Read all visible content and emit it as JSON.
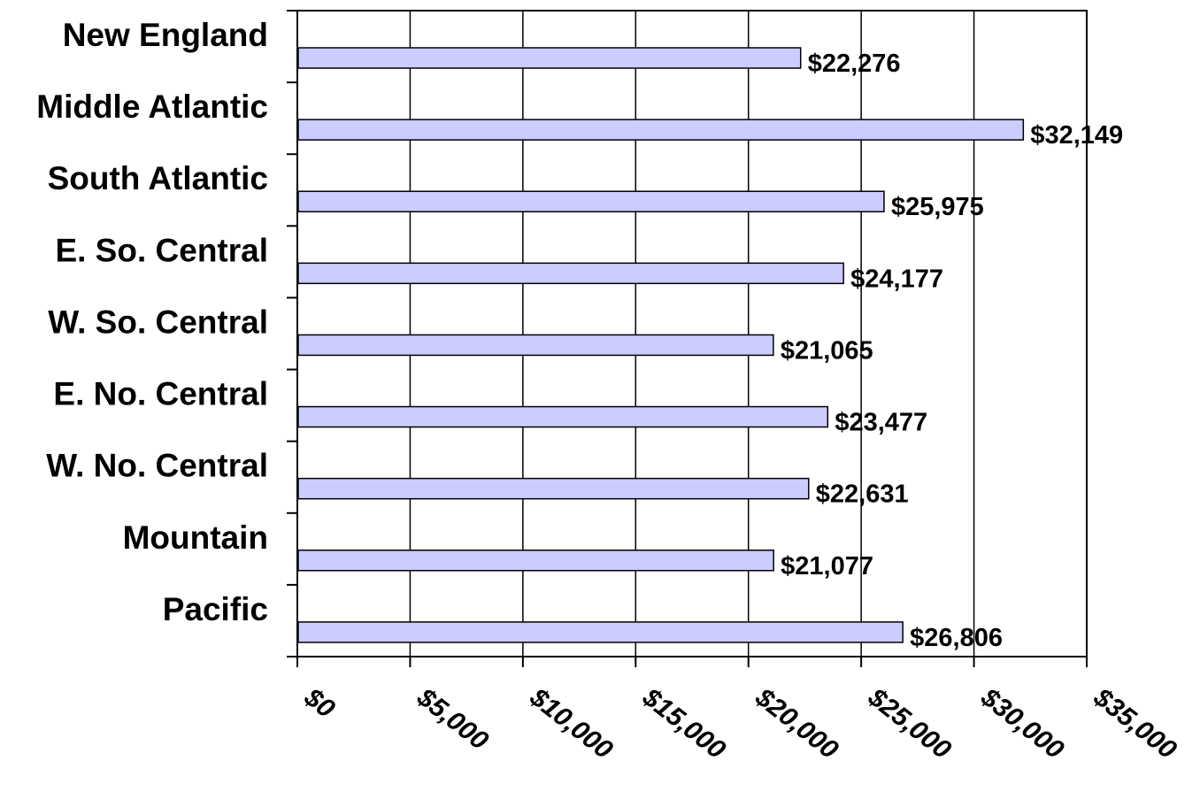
{
  "chart_data": {
    "type": "bar",
    "orientation": "horizontal",
    "categories": [
      "New England",
      "Middle Atlantic",
      "South Atlantic",
      "E. So. Central",
      "W. So. Central",
      "E. No. Central",
      "W. No. Central",
      "Mountain",
      "Pacific"
    ],
    "values": [
      22276,
      32149,
      25975,
      24177,
      21065,
      23477,
      22631,
      21077,
      26806
    ],
    "data_labels": [
      "$22,276",
      "$32,149",
      "$25,975",
      "$24,177",
      "$21,065",
      "$23,477",
      "$22,631",
      "$21,077",
      "$26,806"
    ],
    "x_ticks": [
      0,
      5000,
      10000,
      15000,
      20000,
      25000,
      30000,
      35000
    ],
    "x_tick_labels": [
      "$0",
      "$5,000",
      "$10,000",
      "$15,000",
      "$20,000",
      "$25,000",
      "$30,000",
      "$35,000"
    ],
    "xlim": [
      0,
      35000
    ],
    "title": "",
    "xlabel": "",
    "ylabel": "",
    "grid": "vertical",
    "legend": "none",
    "colors": {
      "bar_fill": "#ccccff",
      "bar_stroke": "#000000",
      "gridline": "#000000",
      "axis": "#000000"
    }
  }
}
